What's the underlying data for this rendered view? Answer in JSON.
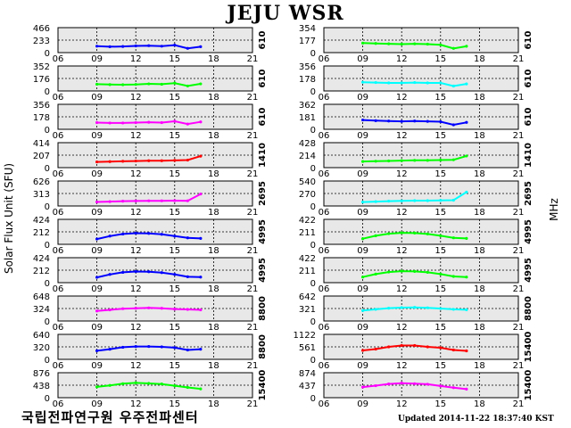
{
  "title": "JEJU WSR",
  "ylabel": "Solar Flux Unit (SFU)",
  "right_label": "MHz",
  "footer_left": "국립전파연구원 우주전파센터",
  "footer_right": "Updated 2014-11-22 18:37:40 KST",
  "colors": {
    "panel_bg": "#e8e8e8",
    "grid": "#000000"
  },
  "chart_data": [
    {
      "type": "scatter",
      "freq": "610",
      "color": "#0000ff",
      "ylim": [
        0,
        466
      ],
      "yticks": [
        "466",
        "233",
        "0"
      ],
      "x": [
        9,
        10,
        11,
        12,
        13,
        14,
        15,
        16,
        17
      ],
      "y": [
        120,
        110,
        115,
        125,
        130,
        120,
        140,
        80,
        110
      ],
      "xticks": [
        "06",
        "09",
        "12",
        "15",
        "18",
        "21"
      ],
      "grid": true
    },
    {
      "type": "scatter",
      "freq": "610",
      "color": "#00ff00",
      "ylim": [
        0,
        352
      ],
      "yticks": [
        "352",
        "176",
        "0"
      ],
      "x": [
        9,
        10,
        11,
        12,
        13,
        14,
        15,
        16,
        17
      ],
      "y": [
        95,
        90,
        88,
        92,
        100,
        95,
        110,
        70,
        100
      ],
      "xticks": [
        "06",
        "09",
        "12",
        "15",
        "18",
        "21"
      ],
      "grid": true
    },
    {
      "type": "scatter",
      "freq": "610",
      "color": "#ff00ff",
      "ylim": [
        0,
        356
      ],
      "yticks": [
        "356",
        "178",
        "0"
      ],
      "x": [
        9,
        10,
        11,
        12,
        13,
        14,
        15,
        16,
        17
      ],
      "y": [
        95,
        90,
        90,
        95,
        100,
        95,
        115,
        75,
        105
      ],
      "xticks": [
        "06",
        "09",
        "12",
        "15",
        "18",
        "21"
      ],
      "grid": true
    },
    {
      "type": "scatter",
      "freq": "1410",
      "color": "#ff0000",
      "ylim": [
        0,
        414
      ],
      "yticks": [
        "414",
        "207",
        "0"
      ],
      "x": [
        9,
        10,
        11,
        12,
        13,
        14,
        15,
        16,
        17
      ],
      "y": [
        95,
        100,
        105,
        110,
        115,
        115,
        120,
        125,
        190
      ],
      "xticks": [
        "06",
        "09",
        "12",
        "15",
        "18",
        "21"
      ],
      "grid": true
    },
    {
      "type": "scatter",
      "freq": "2695",
      "color": "#ff00ff",
      "ylim": [
        0,
        626
      ],
      "yticks": [
        "626",
        "313",
        "0"
      ],
      "x": [
        9,
        10,
        11,
        12,
        13,
        14,
        15,
        16,
        17
      ],
      "y": [
        100,
        110,
        120,
        125,
        130,
        130,
        135,
        130,
        300
      ],
      "xticks": [
        "06",
        "09",
        "12",
        "15",
        "18",
        "21"
      ],
      "grid": true
    },
    {
      "type": "scatter",
      "freq": "4995",
      "color": "#0000ff",
      "ylim": [
        0,
        424
      ],
      "yticks": [
        "424",
        "212",
        "0"
      ],
      "x": [
        9,
        10,
        11,
        12,
        13,
        14,
        15,
        16,
        17
      ],
      "y": [
        90,
        140,
        175,
        190,
        185,
        170,
        140,
        110,
        100
      ],
      "xticks": [
        "06",
        "09",
        "12",
        "15",
        "18",
        "21"
      ],
      "grid": true
    },
    {
      "type": "scatter",
      "freq": "4995",
      "color": "#0000ff",
      "ylim": [
        0,
        424
      ],
      "yticks": [
        "424",
        "212",
        "0"
      ],
      "x": [
        9,
        10,
        11,
        12,
        13,
        14,
        15,
        16,
        17
      ],
      "y": [
        90,
        140,
        175,
        190,
        185,
        170,
        140,
        100,
        95
      ],
      "xticks": [
        "06",
        "09",
        "12",
        "15",
        "18",
        "21"
      ],
      "grid": true
    },
    {
      "type": "scatter",
      "freq": "8800",
      "color": "#ff00ff",
      "ylim": [
        0,
        648
      ],
      "yticks": [
        "648",
        "324",
        "0"
      ],
      "x": [
        9,
        10,
        11,
        12,
        13,
        14,
        15,
        16,
        17
      ],
      "y": [
        260,
        290,
        320,
        330,
        340,
        330,
        310,
        300,
        290
      ],
      "xticks": [
        "06",
        "09",
        "12",
        "15",
        "18",
        "21"
      ],
      "grid": true
    },
    {
      "type": "scatter",
      "freq": "8800",
      "color": "#0000ff",
      "ylim": [
        0,
        640
      ],
      "yticks": [
        "640",
        "320",
        "0"
      ],
      "x": [
        9,
        10,
        11,
        12,
        13,
        14,
        15,
        16,
        17
      ],
      "y": [
        220,
        260,
        310,
        330,
        330,
        320,
        300,
        240,
        260
      ],
      "xticks": [
        "06",
        "09",
        "12",
        "15",
        "18",
        "21"
      ],
      "grid": true
    },
    {
      "type": "scatter",
      "freq": "15400",
      "color": "#00ff00",
      "ylim": [
        0,
        876
      ],
      "yticks": [
        "876",
        "438",
        "0"
      ],
      "x": [
        9,
        10,
        11,
        12,
        13,
        14,
        15,
        16,
        17
      ],
      "y": [
        380,
        430,
        490,
        520,
        500,
        480,
        420,
        360,
        310
      ],
      "xticks": [
        "06",
        "09",
        "12",
        "15",
        "18",
        "21"
      ],
      "grid": true
    },
    {
      "type": "scatter",
      "freq": "610",
      "color": "#00ff00",
      "ylim": [
        0,
        354
      ],
      "yticks": [
        "354",
        "177",
        "0"
      ],
      "x": [
        9,
        10,
        11,
        12,
        13,
        14,
        15,
        16,
        17
      ],
      "y": [
        135,
        130,
        125,
        120,
        125,
        120,
        110,
        60,
        90
      ],
      "xticks": [
        "06",
        "09",
        "12",
        "15",
        "18",
        "21"
      ],
      "grid": true
    },
    {
      "type": "scatter",
      "freq": "610",
      "color": "#00ffff",
      "ylim": [
        0,
        356
      ],
      "yticks": [
        "356",
        "178",
        "0"
      ],
      "x": [
        9,
        10,
        11,
        12,
        13,
        14,
        15,
        16,
        17
      ],
      "y": [
        125,
        120,
        115,
        115,
        120,
        115,
        115,
        70,
        100
      ],
      "xticks": [
        "06",
        "09",
        "12",
        "15",
        "18",
        "21"
      ],
      "grid": true
    },
    {
      "type": "scatter",
      "freq": "610",
      "color": "#0000ff",
      "ylim": [
        0,
        362
      ],
      "yticks": [
        "362",
        "181",
        "0"
      ],
      "x": [
        9,
        10,
        11,
        12,
        13,
        14,
        15,
        16,
        17
      ],
      "y": [
        135,
        125,
        120,
        115,
        120,
        115,
        110,
        65,
        100
      ],
      "xticks": [
        "06",
        "09",
        "12",
        "15",
        "18",
        "21"
      ],
      "grid": true
    },
    {
      "type": "scatter",
      "freq": "1410",
      "color": "#00ff00",
      "ylim": [
        0,
        428
      ],
      "yticks": [
        "428",
        "214",
        "0"
      ],
      "x": [
        9,
        10,
        11,
        12,
        13,
        14,
        15,
        16,
        17
      ],
      "y": [
        105,
        110,
        115,
        120,
        125,
        125,
        130,
        135,
        200
      ],
      "xticks": [
        "06",
        "09",
        "12",
        "15",
        "18",
        "21"
      ],
      "grid": true
    },
    {
      "type": "scatter",
      "freq": "2695",
      "color": "#00ffff",
      "ylim": [
        0,
        540
      ],
      "yticks": [
        "540",
        "270",
        "0"
      ],
      "x": [
        9,
        10,
        11,
        12,
        13,
        14,
        15,
        16,
        17
      ],
      "y": [
        85,
        95,
        105,
        110,
        115,
        115,
        120,
        125,
        300
      ],
      "xticks": [
        "06",
        "09",
        "12",
        "15",
        "18",
        "21"
      ],
      "grid": true
    },
    {
      "type": "scatter",
      "freq": "4995",
      "color": "#00ff00",
      "ylim": [
        0,
        422
      ],
      "yticks": [
        "422",
        "211",
        "0"
      ],
      "x": [
        9,
        10,
        11,
        12,
        13,
        14,
        15,
        16,
        17
      ],
      "y": [
        95,
        145,
        180,
        195,
        190,
        175,
        145,
        110,
        100
      ],
      "xticks": [
        "06",
        "09",
        "12",
        "15",
        "18",
        "21"
      ],
      "grid": true
    },
    {
      "type": "scatter",
      "freq": "4995",
      "color": "#00ff00",
      "ylim": [
        0,
        422
      ],
      "yticks": [
        "422",
        "211",
        "0"
      ],
      "x": [
        9,
        10,
        11,
        12,
        13,
        14,
        15,
        16,
        17
      ],
      "y": [
        95,
        145,
        180,
        195,
        190,
        175,
        145,
        105,
        95
      ],
      "xticks": [
        "06",
        "09",
        "12",
        "15",
        "18",
        "21"
      ],
      "grid": true
    },
    {
      "type": "scatter",
      "freq": "8800",
      "color": "#00ffff",
      "ylim": [
        0,
        642
      ],
      "yticks": [
        "642",
        "321",
        "0"
      ],
      "x": [
        9,
        10,
        11,
        12,
        13,
        14,
        15,
        16,
        17
      ],
      "y": [
        270,
        300,
        330,
        345,
        350,
        340,
        320,
        300,
        290
      ],
      "xticks": [
        "06",
        "09",
        "12",
        "15",
        "18",
        "21"
      ],
      "grid": true
    },
    {
      "type": "scatter",
      "freq": "15400",
      "color": "#ff0000",
      "ylim": [
        0,
        1122
      ],
      "yticks": [
        "1122",
        "561",
        "0"
      ],
      "x": [
        9,
        10,
        11,
        12,
        13,
        14,
        15,
        16,
        17
      ],
      "y": [
        400,
        460,
        560,
        620,
        620,
        560,
        520,
        420,
        380
      ],
      "xticks": [
        "06",
        "09",
        "12",
        "15",
        "18",
        "21"
      ],
      "grid": true
    },
    {
      "type": "scatter",
      "freq": "15400",
      "color": "#ff00ff",
      "ylim": [
        0,
        874
      ],
      "yticks": [
        "874",
        "437",
        "0"
      ],
      "x": [
        9,
        10,
        11,
        12,
        13,
        14,
        15,
        16,
        17
      ],
      "y": [
        370,
        420,
        480,
        510,
        490,
        470,
        410,
        350,
        300
      ],
      "xticks": [
        "06",
        "09",
        "12",
        "15",
        "18",
        "21"
      ],
      "grid": true
    }
  ]
}
